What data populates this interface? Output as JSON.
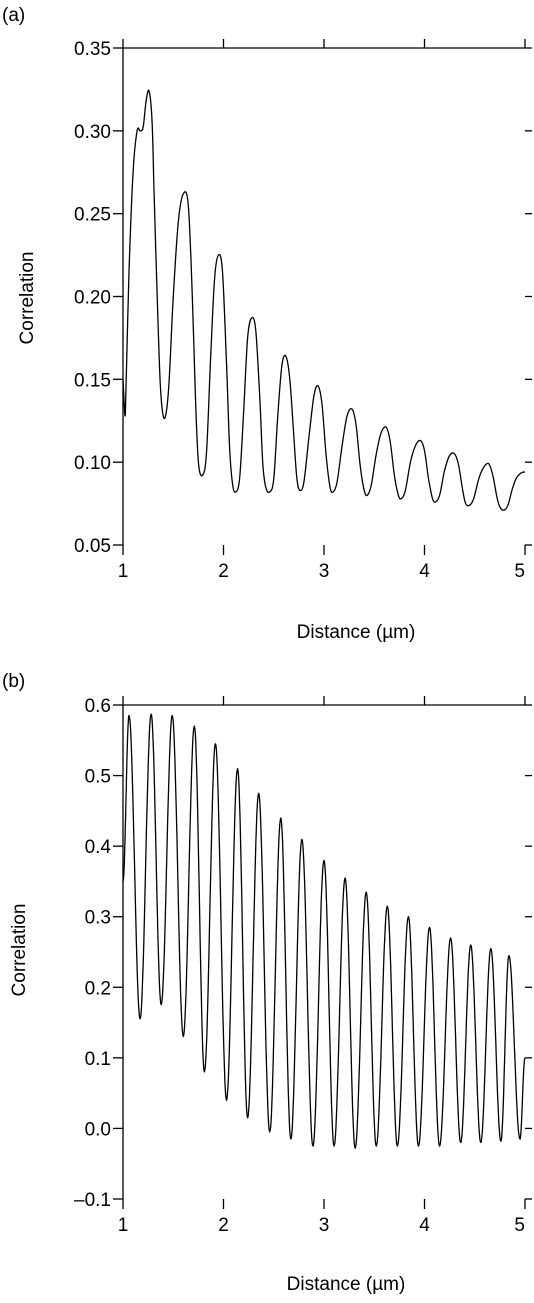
{
  "chart_data": [
    {
      "type": "line",
      "panel_label": "(a)",
      "xlabel": "Distance (µm)",
      "ylabel": "Correlation",
      "xlim": [
        1,
        5
      ],
      "ylim": [
        0.05,
        0.35
      ],
      "xticks": [
        1,
        2,
        3,
        4,
        5
      ],
      "xtick_labels": [
        "1",
        "2",
        "3",
        "4",
        "5"
      ],
      "yticks": [
        0.05,
        0.1,
        0.15,
        0.2,
        0.25,
        0.3,
        0.35
      ],
      "ytick_labels": [
        "0.05",
        "0.10",
        "0.15",
        "0.20",
        "0.25",
        "0.30",
        "0.35"
      ],
      "grid": false,
      "series": [
        {
          "x": [
            1.0,
            1.02,
            1.03,
            1.06,
            1.1,
            1.14,
            1.17,
            1.2,
            1.23,
            1.26,
            1.29,
            1.31,
            1.34,
            1.37,
            1.4,
            1.43,
            1.46,
            1.5,
            1.55,
            1.6,
            1.65,
            1.69,
            1.72,
            1.75,
            1.79,
            1.83,
            1.87,
            1.91,
            1.95,
            1.99,
            2.03,
            2.06,
            2.09,
            2.12,
            2.16,
            2.2,
            2.24,
            2.28,
            2.32,
            2.36,
            2.39,
            2.42,
            2.46,
            2.5,
            2.54,
            2.58,
            2.62,
            2.66,
            2.7,
            2.73,
            2.76,
            2.8,
            2.85,
            2.9,
            2.94,
            2.98,
            3.02,
            3.06,
            3.09,
            3.13,
            3.18,
            3.23,
            3.28,
            3.32,
            3.36,
            3.4,
            3.43,
            3.47,
            3.52,
            3.57,
            3.62,
            3.66,
            3.7,
            3.74,
            3.77,
            3.81,
            3.86,
            3.91,
            3.96,
            4.0,
            4.04,
            4.08,
            4.11,
            4.15,
            4.2,
            4.25,
            4.3,
            4.34,
            4.38,
            4.41,
            4.45,
            4.49,
            4.54,
            4.59,
            4.64,
            4.68,
            4.72,
            4.75,
            4.79,
            4.83,
            4.87,
            4.91,
            4.95,
            4.98,
            5.0
          ],
          "values": [
            0.15,
            0.128,
            0.145,
            0.215,
            0.275,
            0.3,
            0.3,
            0.302,
            0.318,
            0.324,
            0.305,
            0.26,
            0.2,
            0.148,
            0.128,
            0.13,
            0.15,
            0.2,
            0.245,
            0.262,
            0.255,
            0.2,
            0.14,
            0.1,
            0.092,
            0.105,
            0.16,
            0.21,
            0.225,
            0.215,
            0.16,
            0.11,
            0.087,
            0.082,
            0.09,
            0.13,
            0.175,
            0.187,
            0.18,
            0.14,
            0.1,
            0.085,
            0.082,
            0.09,
            0.128,
            0.158,
            0.164,
            0.15,
            0.115,
            0.09,
            0.083,
            0.088,
            0.115,
            0.14,
            0.146,
            0.135,
            0.105,
            0.085,
            0.082,
            0.088,
            0.11,
            0.128,
            0.132,
            0.122,
            0.098,
            0.083,
            0.08,
            0.086,
            0.105,
            0.118,
            0.121,
            0.112,
            0.092,
            0.08,
            0.078,
            0.083,
            0.1,
            0.11,
            0.113,
            0.107,
            0.09,
            0.078,
            0.076,
            0.08,
            0.095,
            0.104,
            0.105,
            0.098,
            0.083,
            0.075,
            0.074,
            0.078,
            0.09,
            0.097,
            0.099,
            0.092,
            0.079,
            0.073,
            0.071,
            0.074,
            0.083,
            0.09,
            0.093,
            0.094,
            0.094
          ]
        }
      ]
    },
    {
      "type": "line",
      "panel_label": "(b)",
      "xlabel": "Distance (µm)",
      "ylabel": "Correlation",
      "xlim": [
        1,
        5
      ],
      "ylim": [
        -0.1,
        0.6
      ],
      "xticks": [
        1,
        2,
        3,
        4,
        5
      ],
      "xtick_labels": [
        "1",
        "2",
        "3",
        "4",
        "5"
      ],
      "yticks": [
        -0.1,
        0.0,
        0.1,
        0.2,
        0.3,
        0.4,
        0.5,
        0.6
      ],
      "ytick_labels": [
        "–0.1",
        "0.0",
        "0.1",
        "0.2",
        "0.3",
        "0.4",
        "0.5",
        "0.6"
      ],
      "grid": false,
      "oscillation": {
        "start_x": 1.0,
        "start_value": 0.35,
        "end_value": 0.1,
        "peaks_x": [
          1.06,
          1.28,
          1.49,
          1.71,
          1.92,
          2.14,
          2.35,
          2.57,
          2.78,
          3.0,
          3.21,
          3.42,
          3.63,
          3.84,
          4.05,
          4.26,
          4.46,
          4.66,
          4.84
        ],
        "peaks_y": [
          0.585,
          0.587,
          0.585,
          0.57,
          0.545,
          0.51,
          0.475,
          0.44,
          0.41,
          0.38,
          0.355,
          0.335,
          0.315,
          0.3,
          0.285,
          0.27,
          0.26,
          0.255,
          0.245
        ],
        "troughs_x": [
          1.17,
          1.38,
          1.6,
          1.81,
          2.03,
          2.24,
          2.46,
          2.67,
          2.89,
          3.1,
          3.31,
          3.52,
          3.73,
          3.94,
          4.15,
          4.36,
          4.56,
          4.76,
          4.95
        ],
        "troughs_y": [
          0.155,
          0.175,
          0.13,
          0.08,
          0.04,
          0.015,
          -0.005,
          -0.015,
          -0.025,
          -0.025,
          -0.028,
          -0.025,
          -0.025,
          -0.025,
          -0.025,
          -0.02,
          -0.02,
          -0.018,
          -0.015
        ]
      }
    }
  ]
}
